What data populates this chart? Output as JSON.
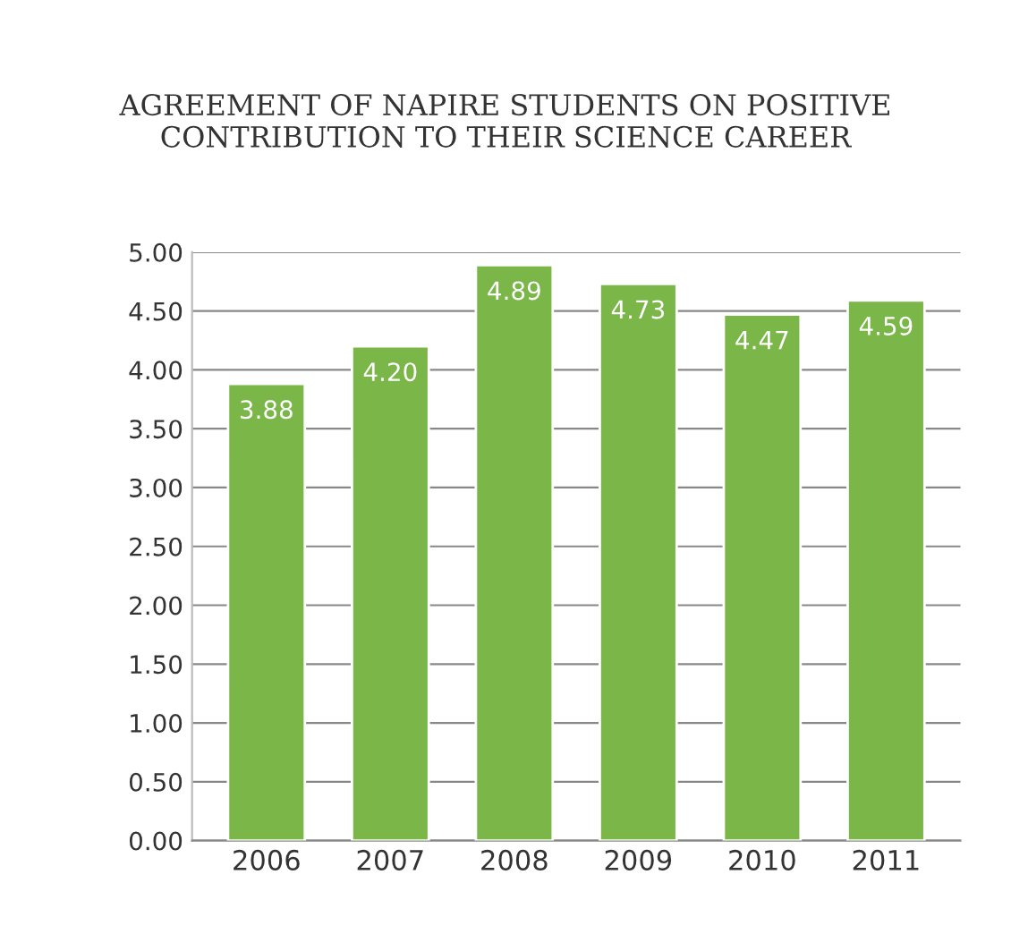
{
  "chart_data": {
    "type": "bar",
    "title": "AGREEMENT OF NAPIRE STUDENTS ON POSITIVE\nCONTRIBUTION TO THEIR SCIENCE CAREER",
    "categories": [
      "2006",
      "2007",
      "2008",
      "2009",
      "2010",
      "2011"
    ],
    "values": [
      3.88,
      4.2,
      4.89,
      4.73,
      4.47,
      4.59
    ],
    "value_labels": [
      "3.88",
      "4.20",
      "4.89",
      "4.73",
      "4.47",
      "4.59"
    ],
    "color": "#7ab648",
    "ylim": [
      0,
      5
    ],
    "yticks": [
      {
        "value": 0,
        "label": "0.00"
      },
      {
        "value": 0.5,
        "label": "0.50"
      },
      {
        "value": 1,
        "label": "1.00"
      },
      {
        "value": 1.5,
        "label": "1.50"
      },
      {
        "value": 2,
        "label": "2.00"
      },
      {
        "value": 2.5,
        "label": "2.50"
      },
      {
        "value": 3,
        "label": "3.00"
      },
      {
        "value": 3.5,
        "label": "3.50"
      },
      {
        "value": 4,
        "label": "4.00"
      },
      {
        "value": 4.5,
        "label": "4.50"
      },
      {
        "value": 5,
        "label": "5.00"
      }
    ],
    "grid": "y"
  }
}
